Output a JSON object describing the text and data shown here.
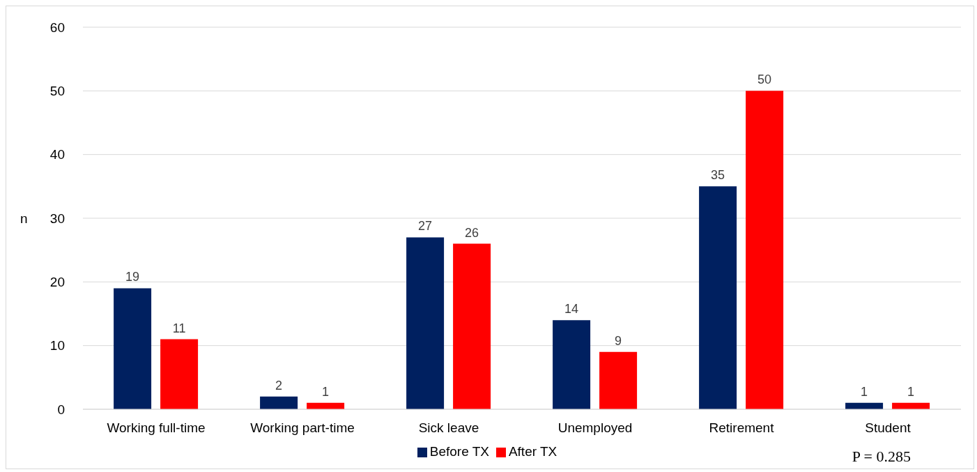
{
  "chart_data": {
    "type": "bar",
    "ylabel": "n",
    "categories": [
      "Working full-time",
      "Working part-time",
      "Sick leave",
      "Unemployed",
      "Retirement",
      "Student"
    ],
    "series": [
      {
        "name": "Before TX",
        "color": "#002060",
        "values": [
          19,
          2,
          27,
          14,
          35,
          1
        ]
      },
      {
        "name": "After TX",
        "color": "#ff0000",
        "values": [
          11,
          1,
          26,
          9,
          50,
          1
        ]
      }
    ],
    "ylim": [
      0,
      60
    ],
    "yticks": [
      0,
      10,
      20,
      30,
      40,
      50,
      60
    ],
    "grid": "y",
    "legend": "bottom",
    "data_labels": true,
    "annotations": [
      "P = 0.285"
    ]
  }
}
